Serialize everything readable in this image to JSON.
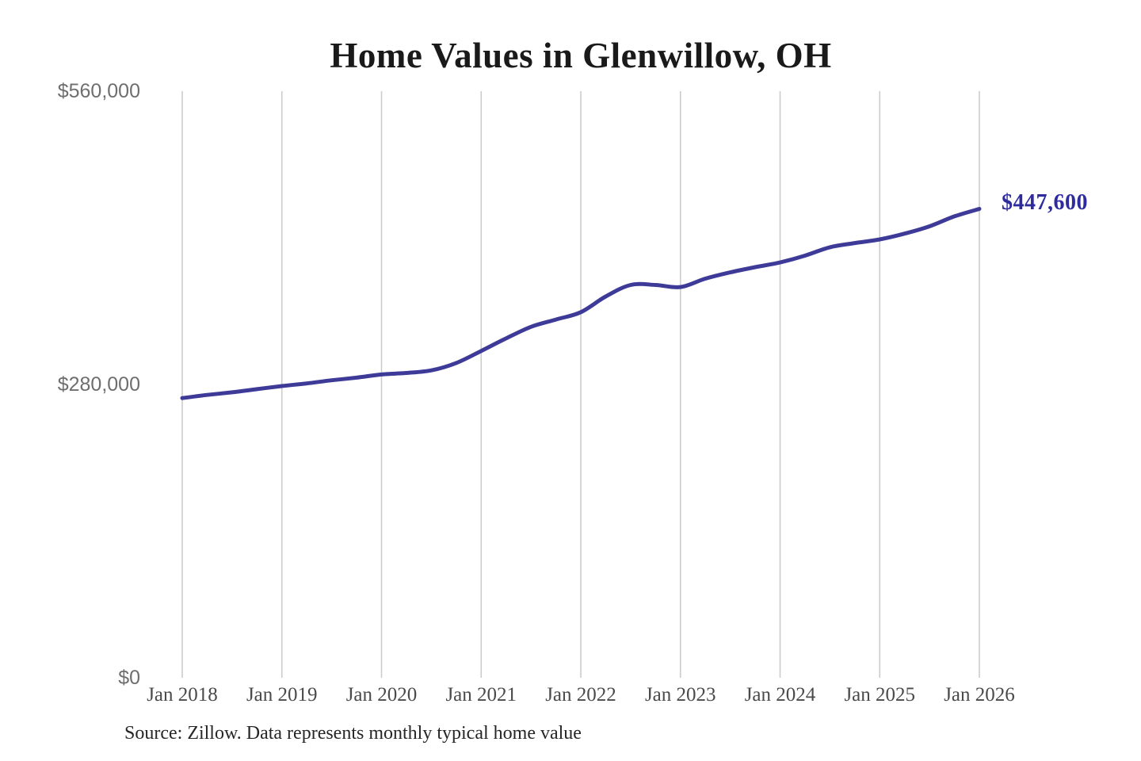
{
  "title": "Home Values in Glenwillow, OH",
  "end_label": "$447,600",
  "source_note": "Source: Zillow. Data represents monthly typical home value",
  "colors": {
    "line": "#3E3B98",
    "end_label": "#2E2B9E",
    "grid": "#CCCCCC",
    "y_tick_text": "#6E6E6E",
    "x_tick_text": "#4A4A4A",
    "title_text": "#1A1A1A",
    "source_text": "#262626",
    "background": "#FFFFFF"
  },
  "chart_data": {
    "type": "line",
    "title": "Home Values in Glenwillow, OH",
    "xlabel": "",
    "ylabel": "",
    "xlim": [
      "2018-01",
      "2026-01"
    ],
    "ylim": [
      0,
      560000
    ],
    "grid": "vertical-yearly-only",
    "legend": "none",
    "y_ticks": [
      {
        "value": 0,
        "label": "$0"
      },
      {
        "value": 280000,
        "label": "$280,000"
      },
      {
        "value": 560000,
        "label": "$560,000"
      }
    ],
    "x_ticks": [
      {
        "month": "2018-01",
        "label": "Jan 2018"
      },
      {
        "month": "2019-01",
        "label": "Jan 2019"
      },
      {
        "month": "2020-01",
        "label": "Jan 2020"
      },
      {
        "month": "2021-01",
        "label": "Jan 2021"
      },
      {
        "month": "2022-01",
        "label": "Jan 2022"
      },
      {
        "month": "2023-01",
        "label": "Jan 2023"
      },
      {
        "month": "2024-01",
        "label": "Jan 2024"
      },
      {
        "month": "2025-01",
        "label": "Jan 2025"
      },
      {
        "month": "2026-01",
        "label": "Jan 2026"
      }
    ],
    "series": [
      {
        "name": "typical-home-value",
        "points": [
          [
            "2018-01",
            267000
          ],
          [
            "2018-04",
            270000
          ],
          [
            "2018-07",
            272500
          ],
          [
            "2018-10",
            275500
          ],
          [
            "2019-01",
            278500
          ],
          [
            "2019-04",
            281000
          ],
          [
            "2019-07",
            284000
          ],
          [
            "2019-10",
            286500
          ],
          [
            "2020-01",
            289500
          ],
          [
            "2020-04",
            291000
          ],
          [
            "2020-07",
            293500
          ],
          [
            "2020-10",
            300500
          ],
          [
            "2021-01",
            312000
          ],
          [
            "2021-04",
            324000
          ],
          [
            "2021-07",
            335000
          ],
          [
            "2021-10",
            342000
          ],
          [
            "2022-01",
            349000
          ],
          [
            "2022-04",
            364000
          ],
          [
            "2022-07",
            375000
          ],
          [
            "2022-10",
            375000
          ],
          [
            "2023-01",
            373000
          ],
          [
            "2023-04",
            381000
          ],
          [
            "2023-07",
            387000
          ],
          [
            "2023-10",
            392000
          ],
          [
            "2024-01",
            396500
          ],
          [
            "2024-04",
            403000
          ],
          [
            "2024-07",
            411000
          ],
          [
            "2024-10",
            415000
          ],
          [
            "2025-01",
            418500
          ],
          [
            "2025-04",
            424000
          ],
          [
            "2025-07",
            431000
          ],
          [
            "2025-10",
            440500
          ],
          [
            "2026-01",
            447600
          ]
        ]
      }
    ],
    "final_value": 447600,
    "final_value_label": "$447,600"
  }
}
